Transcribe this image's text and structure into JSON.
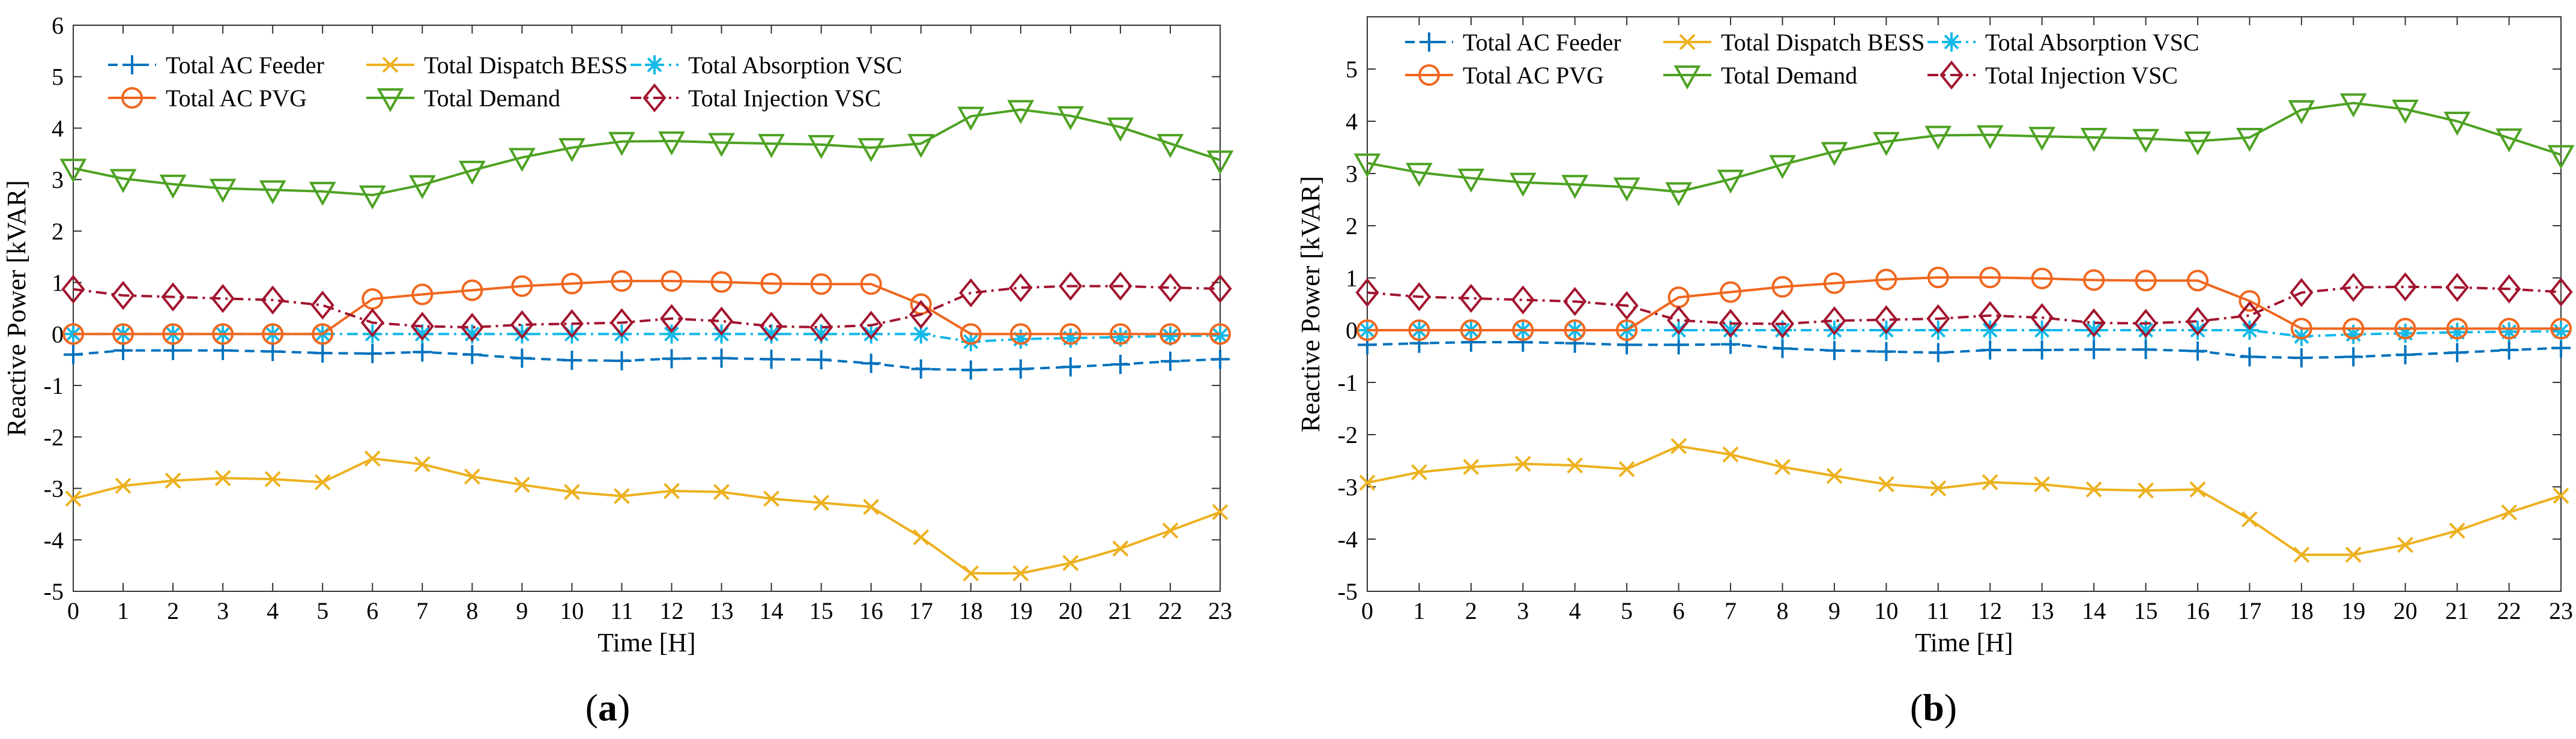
{
  "figure": {
    "panels": [
      {
        "caption_open": "(",
        "caption_letter": "a",
        "caption_close": ")"
      },
      {
        "caption_open": "(",
        "caption_letter": "b",
        "caption_close": ")"
      }
    ]
  },
  "legend_layout": "two rows inside plot area, top",
  "chart_data": [
    {
      "type": "line",
      "panel": "a",
      "title": "",
      "xlabel": "Time [H]",
      "ylabel": "Reactive Power [kVAR]",
      "xlim": [
        0,
        23
      ],
      "ylim": [
        -5,
        6
      ],
      "x_ticks": [
        "0",
        "1",
        "2",
        "3",
        "4",
        "5",
        "6",
        "7",
        "8",
        "9",
        "10",
        "11",
        "12",
        "13",
        "14",
        "15",
        "16",
        "17",
        "18",
        "19",
        "20",
        "21",
        "22",
        "23"
      ],
      "y_ticks": [
        "-5",
        "-4",
        "-3",
        "-2",
        "-1",
        "0",
        "1",
        "2",
        "3",
        "4",
        "5",
        "6"
      ],
      "grid": false,
      "x": [
        0,
        1,
        2,
        3,
        4,
        5,
        6,
        7,
        8,
        9,
        10,
        11,
        12,
        13,
        14,
        15,
        16,
        17,
        18,
        19,
        20,
        21,
        22,
        23
      ],
      "series": [
        {
          "name": "Total AC Feeder",
          "color": "#0072BD",
          "marker": "plus",
          "dash": "dashed",
          "values": [
            -0.4,
            -0.32,
            -0.32,
            -0.32,
            -0.34,
            -0.37,
            -0.38,
            -0.35,
            -0.4,
            -0.47,
            -0.51,
            -0.52,
            -0.48,
            -0.47,
            -0.49,
            -0.5,
            -0.57,
            -0.68,
            -0.7,
            -0.68,
            -0.64,
            -0.59,
            -0.53,
            -0.49
          ]
        },
        {
          "name": "Total Dispatch BESS",
          "color": "#EDB120",
          "marker": "x",
          "dash": "solid",
          "values": [
            -3.2,
            -2.95,
            -2.85,
            -2.8,
            -2.82,
            -2.88,
            -2.42,
            -2.53,
            -2.77,
            -2.93,
            -3.07,
            -3.15,
            -3.05,
            -3.07,
            -3.2,
            -3.28,
            -3.36,
            -3.95,
            -4.65,
            -4.65,
            -4.45,
            -4.17,
            -3.82,
            -3.46
          ]
        },
        {
          "name": "Total Absorption VSC",
          "color": "#13B9E8",
          "marker": "asterisk",
          "dash": "dashdot",
          "values": [
            0,
            0,
            0,
            0,
            0,
            0,
            0,
            0,
            0,
            0,
            0,
            0,
            0,
            0,
            0,
            0,
            0,
            0,
            -0.15,
            -0.1,
            -0.08,
            -0.06,
            -0.04,
            -0.03
          ]
        },
        {
          "name": "Total AC PVG",
          "color": "#F0671F",
          "marker": "circle",
          "dash": "solid",
          "values": [
            0,
            0,
            0,
            0,
            0,
            0,
            0.68,
            0.77,
            0.85,
            0.93,
            0.98,
            1.03,
            1.03,
            1.01,
            0.98,
            0.97,
            0.97,
            0.58,
            0,
            0,
            0,
            0,
            0,
            0
          ]
        },
        {
          "name": "Total Demand",
          "color": "#4DA222",
          "marker": "triangle-down",
          "dash": "solid",
          "values": [
            3.22,
            3.02,
            2.91,
            2.83,
            2.8,
            2.77,
            2.7,
            2.9,
            3.18,
            3.43,
            3.62,
            3.74,
            3.75,
            3.72,
            3.7,
            3.68,
            3.62,
            3.7,
            4.23,
            4.36,
            4.24,
            4.02,
            3.7,
            3.38
          ]
        },
        {
          "name": "Total Injection VSC",
          "color": "#A2142F",
          "marker": "diamond",
          "dash": "dashdot",
          "values": [
            0.87,
            0.75,
            0.72,
            0.69,
            0.66,
            0.56,
            0.22,
            0.15,
            0.13,
            0.18,
            0.2,
            0.22,
            0.3,
            0.25,
            0.15,
            0.13,
            0.17,
            0.38,
            0.8,
            0.9,
            0.93,
            0.93,
            0.9,
            0.88
          ]
        }
      ]
    },
    {
      "type": "line",
      "panel": "b",
      "title": "",
      "xlabel": "Time [H]",
      "ylabel": "Reactive Power [kVAR]",
      "xlim": [
        0,
        23
      ],
      "ylim": [
        -5,
        6
      ],
      "x_ticks": [
        "0",
        "1",
        "2",
        "3",
        "4",
        "5",
        "6",
        "7",
        "8",
        "9",
        "10",
        "11",
        "12",
        "13",
        "14",
        "15",
        "16",
        "17",
        "18",
        "19",
        "20",
        "21",
        "22",
        "23"
      ],
      "y_ticks": [
        "-5",
        "-4",
        "-3",
        "-2",
        "-1",
        "0",
        "1",
        "2",
        "3",
        "4",
        "5"
      ],
      "grid": false,
      "x": [
        0,
        1,
        2,
        3,
        4,
        5,
        6,
        7,
        8,
        9,
        10,
        11,
        12,
        13,
        14,
        15,
        16,
        17,
        18,
        19,
        20,
        21,
        22,
        23
      ],
      "series": [
        {
          "name": "Total AC Feeder",
          "color": "#0072BD",
          "marker": "plus",
          "dash": "dashed",
          "values": [
            -0.28,
            -0.25,
            -0.23,
            -0.23,
            -0.25,
            -0.28,
            -0.28,
            -0.27,
            -0.35,
            -0.39,
            -0.41,
            -0.43,
            -0.38,
            -0.38,
            -0.37,
            -0.37,
            -0.4,
            -0.51,
            -0.53,
            -0.51,
            -0.47,
            -0.43,
            -0.38,
            -0.34
          ]
        },
        {
          "name": "Total Dispatch BESS",
          "color": "#EDB120",
          "marker": "x",
          "dash": "solid",
          "values": [
            -2.92,
            -2.72,
            -2.62,
            -2.56,
            -2.59,
            -2.66,
            -2.22,
            -2.38,
            -2.62,
            -2.79,
            -2.95,
            -3.03,
            -2.91,
            -2.95,
            -3.05,
            -3.07,
            -3.05,
            -3.62,
            -4.3,
            -4.3,
            -4.11,
            -3.84,
            -3.49,
            -3.17
          ]
        },
        {
          "name": "Total Absorption VSC",
          "color": "#13B9E8",
          "marker": "asterisk",
          "dash": "dashdot",
          "values": [
            0,
            0,
            0,
            0,
            0,
            0,
            0,
            0,
            0,
            0,
            0,
            0,
            0,
            0,
            0,
            0,
            0,
            0,
            -0.12,
            -0.08,
            -0.06,
            -0.04,
            -0.03,
            -0.02
          ]
        },
        {
          "name": "Total AC PVG",
          "color": "#F0671F",
          "marker": "circle",
          "dash": "solid",
          "values": [
            0,
            0,
            0,
            0,
            0,
            0,
            0.63,
            0.73,
            0.83,
            0.9,
            0.97,
            1.01,
            1.01,
            0.99,
            0.96,
            0.95,
            0.95,
            0.56,
            0.03,
            0.03,
            0.03,
            0.03,
            0.03,
            0.03
          ]
        },
        {
          "name": "Total Demand",
          "color": "#4DA222",
          "marker": "triangle-down",
          "dash": "solid",
          "values": [
            3.2,
            3.02,
            2.91,
            2.83,
            2.79,
            2.74,
            2.65,
            2.89,
            3.17,
            3.42,
            3.61,
            3.73,
            3.74,
            3.71,
            3.69,
            3.67,
            3.62,
            3.69,
            4.22,
            4.35,
            4.23,
            4.0,
            3.68,
            3.36
          ]
        },
        {
          "name": "Total Injection VSC",
          "color": "#A2142F",
          "marker": "diamond",
          "dash": "dashdot",
          "values": [
            0.72,
            0.64,
            0.61,
            0.58,
            0.55,
            0.47,
            0.19,
            0.13,
            0.12,
            0.18,
            0.2,
            0.22,
            0.28,
            0.24,
            0.14,
            0.13,
            0.17,
            0.28,
            0.72,
            0.82,
            0.83,
            0.82,
            0.79,
            0.73
          ]
        }
      ]
    }
  ]
}
